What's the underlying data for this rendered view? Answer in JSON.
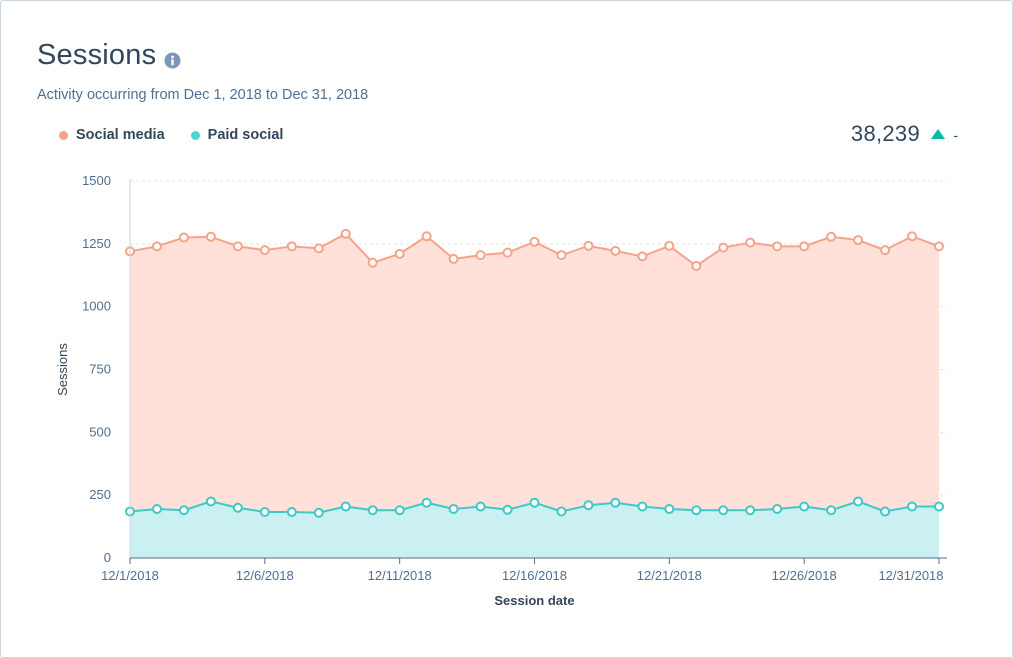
{
  "header": {
    "title": "Sessions",
    "subtitle": "Activity occurring from Dec 1, 2018 to Dec 31, 2018"
  },
  "summary": {
    "total": "38,239",
    "change": "-",
    "trend_color": "#00bda5"
  },
  "chart_data": {
    "type": "area",
    "xlabel": "Session date",
    "ylabel": "Sessions",
    "ylim": [
      0,
      1500
    ],
    "y_ticks": [
      "0",
      "250",
      "500",
      "750",
      "1000",
      "1250",
      "1500"
    ],
    "x_tick_labels": [
      "12/1/2018",
      "12/6/2018",
      "12/11/2018",
      "12/16/2018",
      "12/21/2018",
      "12/26/2018",
      "12/31/2018"
    ],
    "x_tick_days": [
      1,
      6,
      11,
      16,
      21,
      26,
      31
    ],
    "x_min": 1,
    "x_max": 31,
    "legend_position": "top-left",
    "grid": true,
    "days": [
      1,
      2,
      3,
      4,
      5,
      6,
      7,
      8,
      9,
      10,
      11,
      12,
      13,
      14,
      15,
      16,
      17,
      18,
      19,
      20,
      21,
      22,
      23,
      24,
      25,
      26,
      27,
      28,
      29,
      30,
      31
    ],
    "series": [
      {
        "name": "Social media",
        "color": "#ff8f59",
        "stroke": "#f5a48a",
        "fill": "#ffe1d9",
        "values": [
          1220,
          1240,
          1275,
          1278,
          1240,
          1225,
          1240,
          1232,
          1290,
          1175,
          1210,
          1280,
          1190,
          1205,
          1215,
          1258,
          1205,
          1242,
          1222,
          1200,
          1242,
          1162,
          1235,
          1255,
          1240,
          1240,
          1278,
          1265,
          1225,
          1280,
          1240
        ]
      },
      {
        "name": "Paid social",
        "color": "#4fd3d8",
        "stroke": "#3fc8c8",
        "fill": "#cbf0f2",
        "values": [
          185,
          195,
          190,
          225,
          200,
          183,
          183,
          180,
          205,
          190,
          190,
          220,
          195,
          205,
          192,
          220,
          185,
          210,
          220,
          205,
          195,
          190,
          190,
          190,
          195,
          205,
          190,
          225,
          185,
          205,
          205
        ]
      }
    ]
  }
}
